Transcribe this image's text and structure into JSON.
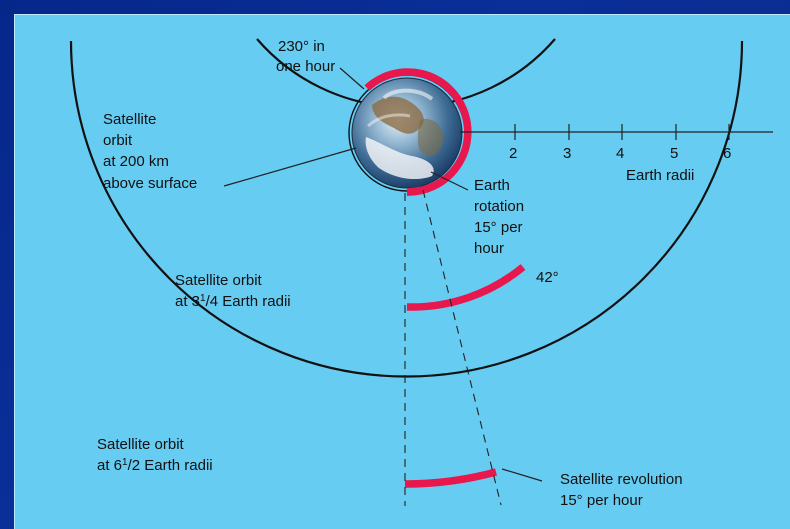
{
  "colors": {
    "frame": "#0a2f99",
    "panel": "#66ccf2",
    "highlight": "#e8174e",
    "line": "#111111"
  },
  "axis": {
    "ticks": [
      "2",
      "3",
      "4",
      "5",
      "6"
    ],
    "label": "Earth radii"
  },
  "labels": {
    "earth_rotation_top_line1": "230° in",
    "earth_rotation_top_line2": "one hour",
    "low_orbit_line1": "Satellite",
    "low_orbit_line2": "orbit",
    "low_orbit_line3": "at 200 km",
    "low_orbit_line4": "above surface",
    "earth_rotation_line1": "Earth",
    "earth_rotation_line2": "rotation",
    "earth_rotation_line3": "15° per",
    "earth_rotation_line4": "hour",
    "mid_orbit_line1": "Satellite orbit",
    "mid_orbit_line2_a": "at 3",
    "mid_orbit_line2_sup": "1",
    "mid_orbit_line2_b": "/4 Earth radii",
    "mid_orbit_angle": "42°",
    "outer_orbit_line1": "Satellite orbit",
    "outer_orbit_line2_a": "at 6",
    "outer_orbit_line2_sup": "1",
    "outer_orbit_line2_b": "/2 Earth radii",
    "revolution_line1": "Satellite revolution",
    "revolution_line2": "15° per hour"
  }
}
